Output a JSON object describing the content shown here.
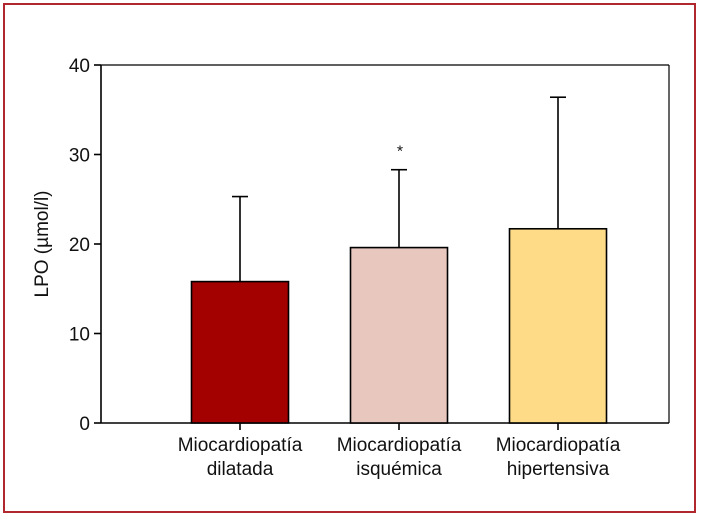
{
  "chart_data": {
    "type": "bar",
    "categories": [
      [
        "Miocardiopatía",
        "dilatada"
      ],
      [
        "Miocardiopatía",
        "isquémica"
      ],
      [
        "Miocardiopatía",
        "hipertensiva"
      ]
    ],
    "values": [
      15.8,
      19.6,
      21.7
    ],
    "error_upper": [
      25.3,
      28.3,
      36.4
    ],
    "bar_colors": [
      "#a30000",
      "#e8c7bf",
      "#fedb87"
    ],
    "annotations": [
      "",
      "*",
      ""
    ],
    "ylabel": "LPO (µmol/l)",
    "xlabel": "",
    "title": "",
    "ylim": [
      0,
      40
    ],
    "yticks": [
      0,
      10,
      20,
      30,
      40
    ],
    "grid": false,
    "frame_color": "#b0272d"
  }
}
